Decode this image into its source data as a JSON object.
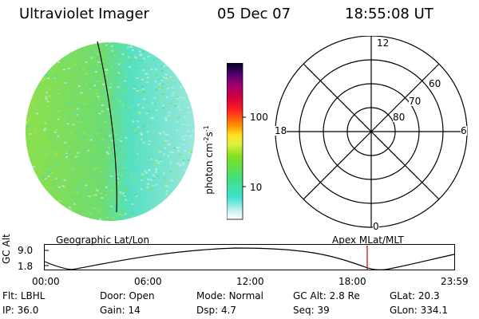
{
  "header": {
    "instrument": "Ultraviolet Imager",
    "date": "05 Dec 07",
    "time": "18:55:08 UT"
  },
  "colorbar": {
    "label_main": "photon cm",
    "label_exp1": "-2",
    "label_mid": "s",
    "label_exp2": "-1",
    "ticks": [
      "100",
      "10"
    ]
  },
  "polar": {
    "mlt_labels": {
      "top": "12",
      "left": "18",
      "right": "6",
      "bottom": "0"
    },
    "lat_labels": [
      "60",
      "70",
      "80"
    ]
  },
  "altitude_plot": {
    "left_title": "Geographic Lat/Lon",
    "right_title": "Apex MLat/MLT",
    "axis_label": "GC Alt",
    "y_max": "9.0",
    "y_min": "1.8",
    "x_ticks": [
      "00:00",
      "06:00",
      "12:00",
      "18:00",
      "23:59"
    ]
  },
  "status": {
    "row1": [
      {
        "label": "Flt:",
        "value": "LBHL"
      },
      {
        "label": "Door:",
        "value": "Open"
      },
      {
        "label": "Mode:",
        "value": "Normal"
      },
      {
        "label": "GC Alt:",
        "value": "2.8 Re"
      },
      {
        "label": "GLat:",
        "value": "20.3"
      }
    ],
    "row2": [
      {
        "label": "IP:",
        "value": "36.0"
      },
      {
        "label": "Gain:",
        "value": "14"
      },
      {
        "label": "Dsp:",
        "value": "4.7"
      },
      {
        "label": "Seq:",
        "value": "39"
      },
      {
        "label": "GLon:",
        "value": "334.1"
      }
    ]
  },
  "colors": {
    "disk_green": "#7fe040",
    "disk_cyan": "#40e0c0",
    "disk_light": "#c0f0e8",
    "marker": "#cc0000"
  }
}
